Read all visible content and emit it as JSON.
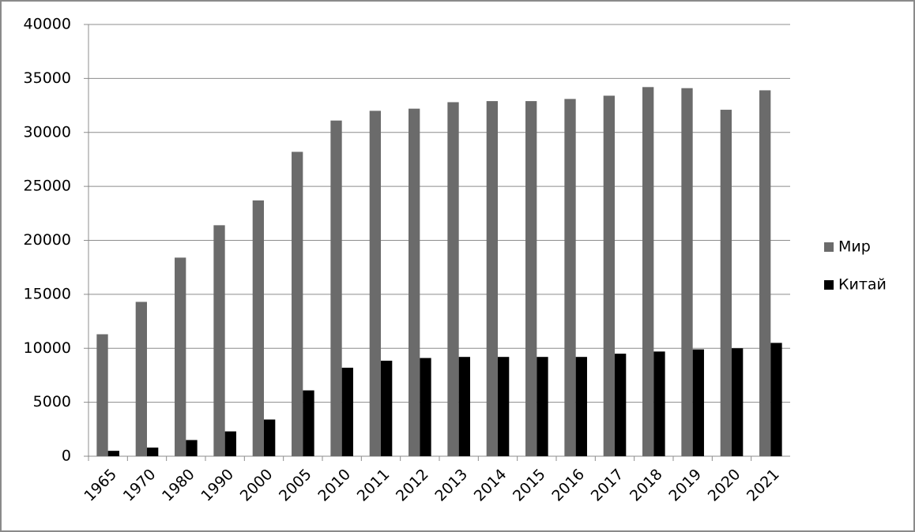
{
  "chart_data": {
    "type": "bar",
    "categories": [
      "1965",
      "1970",
      "1980",
      "1990",
      "2000",
      "2005",
      "2010",
      "2011",
      "2012",
      "2013",
      "2014",
      "2015",
      "2016",
      "2017",
      "2018",
      "2019",
      "2020",
      "2021"
    ],
    "series": [
      {
        "name": "Мир",
        "color": "#6b6b6b",
        "values": [
          11300,
          14300,
          18400,
          21400,
          23700,
          28200,
          31100,
          32000,
          32200,
          32800,
          32900,
          32900,
          33100,
          33400,
          34200,
          34100,
          32100,
          33900
        ]
      },
      {
        "name": "Китай",
        "color": "#000000",
        "values": [
          500,
          800,
          1500,
          2300,
          3400,
          6100,
          8200,
          8850,
          9100,
          9200,
          9200,
          9200,
          9200,
          9500,
          9700,
          9900,
          10000,
          10500
        ]
      }
    ],
    "ylim": [
      0,
      40000
    ],
    "yticks": [
      0,
      5000,
      10000,
      15000,
      20000,
      25000,
      30000,
      35000,
      40000
    ],
    "grid": true,
    "legend": "right"
  }
}
